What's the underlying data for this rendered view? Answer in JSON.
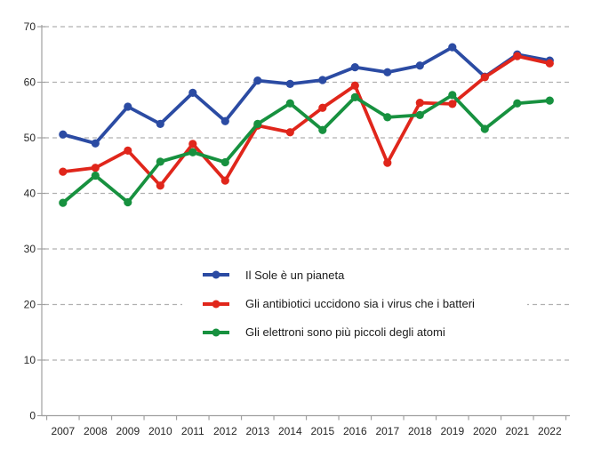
{
  "chart_data": {
    "type": "line",
    "title": "",
    "xlabel": "",
    "ylabel": "",
    "x_categories": [
      "2007",
      "2008",
      "2009",
      "2010",
      "2011",
      "2012",
      "2013",
      "2014",
      "2015",
      "2016",
      "2017",
      "2018",
      "2019",
      "2020",
      "2021",
      "2022"
    ],
    "y_ticks": [
      0,
      10,
      20,
      30,
      40,
      50,
      60,
      70
    ],
    "ylim": [
      0,
      70
    ],
    "grid": "horizontal-dashed",
    "legend_position": "inside-center",
    "series": [
      {
        "name": "Il Sole è un pianeta",
        "color": "#2B4BA3",
        "values": [
          50.6,
          49.0,
          55.6,
          52.5,
          58.1,
          53.0,
          60.3,
          59.7,
          60.4,
          62.7,
          61.8,
          63.0,
          66.3,
          61.0,
          65.0,
          63.9
        ]
      },
      {
        "name": "Gli antibiotici uccidono sia i virus che i batteri",
        "color": "#E0261B",
        "values": [
          43.9,
          44.6,
          47.7,
          41.4,
          48.9,
          42.3,
          52.2,
          51.0,
          55.4,
          59.4,
          45.5,
          56.3,
          56.1,
          60.9,
          64.7,
          63.4
        ]
      },
      {
        "name": "Gli elettroni sono più piccoli degli atomi",
        "color": "#17913F",
        "values": [
          38.3,
          43.2,
          38.4,
          45.7,
          47.4,
          45.6,
          52.5,
          56.2,
          51.4,
          57.3,
          53.7,
          54.1,
          57.7,
          51.6,
          56.2,
          56.7
        ]
      }
    ],
    "colors": {
      "gridline": "#b0b0b0",
      "axis": "#a0a0a0",
      "tick_label": "#262626",
      "background": "#ffffff"
    }
  }
}
